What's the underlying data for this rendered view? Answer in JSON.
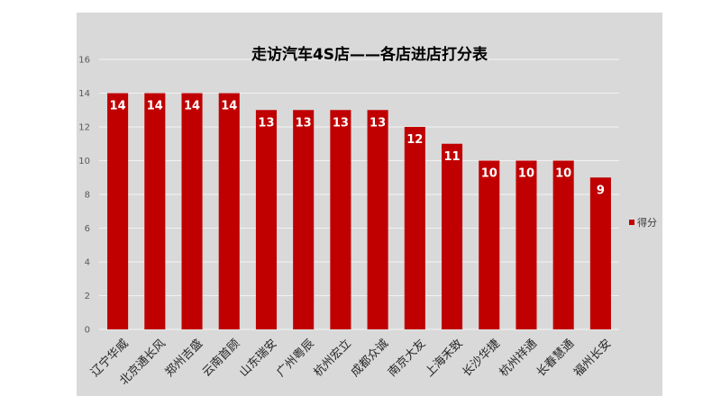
{
  "chart_data": {
    "type": "bar",
    "title": "走访汽车4S店——各店进店打分表",
    "categories": [
      "辽宁华威",
      "北京通长风",
      "郑州吉盛",
      "云南首顾",
      "山东瑞安",
      "广州粤辰",
      "杭州宏立",
      "成都众诚",
      "南京大友",
      "上海禾致",
      "长沙华捷",
      "杭州祥通",
      "长春慧通",
      "福州长安"
    ],
    "series": [
      {
        "name": "得分",
        "values": [
          14,
          14,
          14,
          14,
          13,
          13,
          13,
          13,
          12,
          11,
          10,
          10,
          10,
          9
        ]
      }
    ],
    "ylim": [
      0,
      16
    ],
    "yticks": [
      0,
      2,
      4,
      6,
      8,
      10,
      12,
      14,
      16
    ],
    "grid": true,
    "legend": "right",
    "bar_color": "#c00000",
    "background": "#d9d9d9",
    "gridline_color": "#f2f2f2"
  }
}
